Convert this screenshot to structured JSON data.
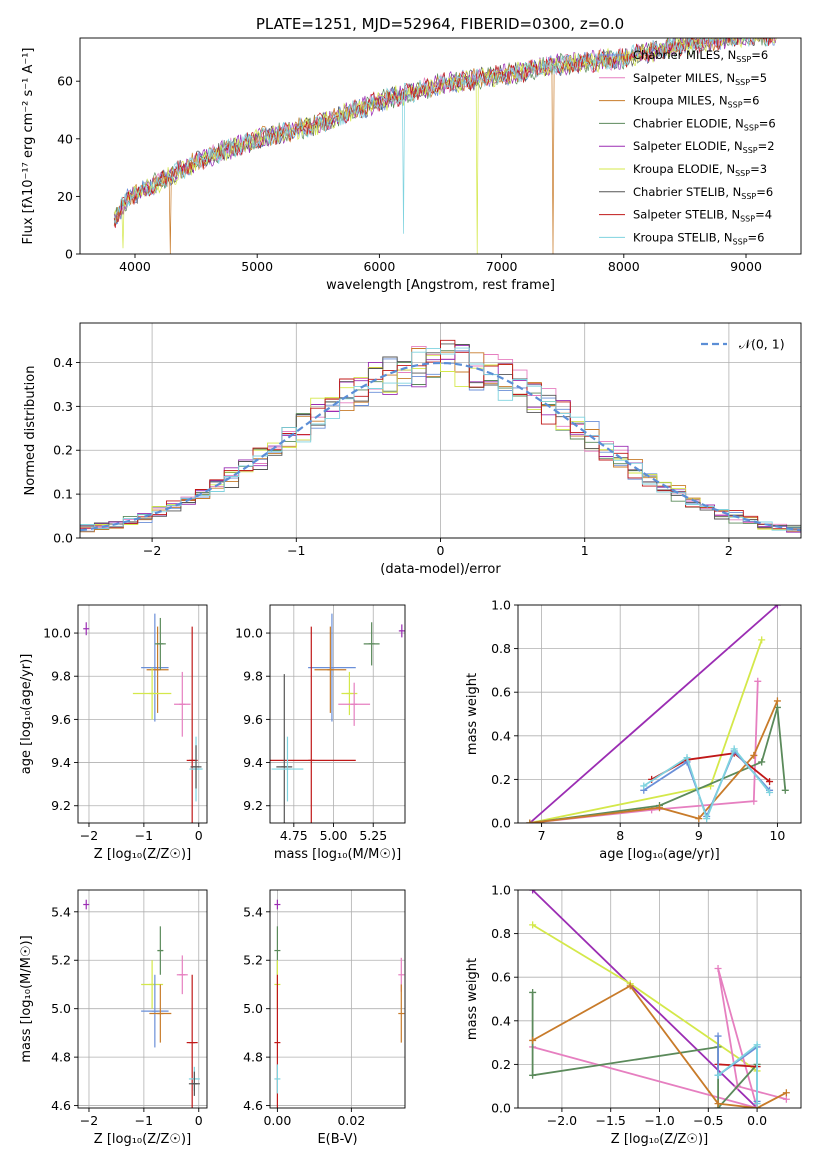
{
  "figure": {
    "title": "PLATE=1251, MJD=52964, FIBERID=0300, z=0.0"
  },
  "models": [
    {
      "name": "Chabrier MILES",
      "nssp": "6",
      "color": "#6a8fd8"
    },
    {
      "name": "Salpeter MILES",
      "nssp": "5",
      "color": "#e67fc0"
    },
    {
      "name": "Kroupa MILES",
      "nssp": "6",
      "color": "#c87b2a"
    },
    {
      "name": "Chabrier ELODIE",
      "nssp": "6",
      "color": "#5b8a5b"
    },
    {
      "name": "Salpeter ELODIE",
      "nssp": "2",
      "color": "#9b2db3"
    },
    {
      "name": "Kroupa ELODIE",
      "nssp": "3",
      "color": "#d4e84a"
    },
    {
      "name": "Chabrier STELIB",
      "nssp": "6",
      "color": "#555555"
    },
    {
      "name": "Salpeter STELIB",
      "nssp": "4",
      "color": "#c01818"
    },
    {
      "name": "Kroupa STELIB",
      "nssp": "6",
      "color": "#7fd3df"
    }
  ],
  "chart_data": [
    {
      "id": "spectrum",
      "type": "line",
      "xlabel": "wavelength [Angstrom, rest frame]",
      "ylabel": "Flux [fλ10⁻¹⁷ erg cm⁻² s⁻¹ A⁻¹]",
      "xlim": [
        3550,
        9450
      ],
      "ylim": [
        0,
        75
      ],
      "xticks": [
        4000,
        5000,
        6000,
        7000,
        8000,
        9000
      ],
      "yticks": [
        0,
        20,
        40,
        60
      ],
      "grid": false,
      "legend": "top-right",
      "continuum": {
        "x": [
          3830,
          3950,
          4200,
          4500,
          5000,
          5500,
          6000,
          6500,
          7000,
          7500,
          8000,
          8200,
          8500,
          9000,
          9250
        ],
        "y": [
          12,
          20,
          25,
          32,
          40,
          45,
          53,
          59,
          62,
          66,
          68,
          70,
          73,
          76,
          76
        ]
      },
      "dips": [
        {
          "x": 3900,
          "model": 5,
          "bottom": 2
        },
        {
          "x": 4290,
          "model": 2,
          "bottom": 0
        },
        {
          "x": 6200,
          "model": 8,
          "bottom": 7
        },
        {
          "x": 6800,
          "model": 5,
          "bottom": 0
        },
        {
          "x": 7420,
          "model": 2,
          "bottom": 0
        }
      ]
    },
    {
      "id": "residuals",
      "type": "line",
      "xlabel": "(data-model)/error",
      "ylabel": "Normed distribution",
      "xlim": [
        -2.5,
        2.5
      ],
      "ylim": [
        0,
        0.49
      ],
      "xticks": [
        -2,
        -1,
        0,
        1,
        2
      ],
      "yticks": [
        0.0,
        0.1,
        0.2,
        0.3,
        0.4
      ],
      "grid": true,
      "legend": "top-right",
      "reference_label": "𝒩(0, 1)",
      "reference_color": "#5b8ed6",
      "bins": {
        "start": -2.5,
        "width": 0.1,
        "count": 50
      }
    },
    {
      "id": "age-vs-Z",
      "type": "scatter",
      "xlabel": "Z [log₁₀(Z/Z☉)]",
      "ylabel": "age  [log₁₀(age/yr)]",
      "xlim": [
        -2.2,
        0.15
      ],
      "ylim": [
        9.12,
        10.13
      ],
      "xticks": [
        -2,
        -1,
        0
      ],
      "yticks": [
        9.2,
        9.4,
        9.6,
        9.8,
        10.0
      ],
      "grid": true,
      "points": [
        {
          "m": 4,
          "x": -2.05,
          "y": 10.02,
          "xe": 0.0,
          "ye": 0.03
        },
        {
          "m": 0,
          "x": -0.8,
          "y": 9.84,
          "xe": 0.25,
          "ye": 0.25
        },
        {
          "m": 2,
          "x": -0.75,
          "y": 9.83,
          "xe": 0.2,
          "ye": 0.2
        },
        {
          "m": 3,
          "x": -0.7,
          "y": 9.95,
          "xe": 0.1,
          "ye": 0.12
        },
        {
          "m": 5,
          "x": -0.85,
          "y": 9.72,
          "xe": 0.35,
          "ye": 0.12
        },
        {
          "m": 1,
          "x": -0.3,
          "y": 9.67,
          "xe": 0.15,
          "ye": 0.15
        },
        {
          "m": 7,
          "x": -0.12,
          "y": 9.41,
          "xe": 0.1,
          "ye": 0.62
        },
        {
          "m": 8,
          "x": -0.05,
          "y": 9.37,
          "xe": 0.12,
          "ye": 0.15
        },
        {
          "m": 6,
          "x": -0.05,
          "y": 9.38,
          "xe": 0.1,
          "ye": 0.1
        }
      ]
    },
    {
      "id": "age-vs-mass",
      "type": "scatter",
      "xlabel": "mass [log₁₀(M/M☉)]",
      "ylabel": "",
      "xlim": [
        4.6,
        5.45
      ],
      "ylim": [
        9.12,
        10.13
      ],
      "xticks": [
        4.75,
        5.0,
        5.25
      ],
      "yticks": [
        9.2,
        9.4,
        9.6,
        9.8,
        10.0
      ],
      "grid": true,
      "points": [
        {
          "m": 4,
          "x": 5.43,
          "y": 10.01,
          "xe": 0.01,
          "ye": 0.03
        },
        {
          "m": 3,
          "x": 5.24,
          "y": 9.95,
          "xe": 0.05,
          "ye": 0.1
        },
        {
          "m": 0,
          "x": 4.99,
          "y": 9.84,
          "xe": 0.15,
          "ye": 0.25
        },
        {
          "m": 2,
          "x": 4.98,
          "y": 9.83,
          "xe": 0.1,
          "ye": 0.2
        },
        {
          "m": 5,
          "x": 5.1,
          "y": 9.72,
          "xe": 0.05,
          "ye": 0.1
        },
        {
          "m": 1,
          "x": 5.13,
          "y": 9.67,
          "xe": 0.1,
          "ye": 0.1
        },
        {
          "m": 7,
          "x": 4.86,
          "y": 9.41,
          "xe": 0.28,
          "ye": 0.62
        },
        {
          "m": 6,
          "x": 4.69,
          "y": 9.38,
          "xe": 0.05,
          "ye": 0.43
        },
        {
          "m": 8,
          "x": 4.71,
          "y": 9.37,
          "xe": 0.1,
          "ye": 0.15
        }
      ]
    },
    {
      "id": "weight-vs-age",
      "type": "line",
      "xlabel": "age  [log₁₀(age/yr)]",
      "ylabel": "mass weight",
      "xlim": [
        6.7,
        10.3
      ],
      "ylim": [
        0,
        1.0
      ],
      "xticks": [
        7,
        8,
        9,
        10
      ],
      "yticks": [
        0.0,
        0.2,
        0.4,
        0.6,
        0.8,
        1.0
      ],
      "grid": true,
      "series": [
        {
          "m": 4,
          "x": [
            6.85,
            10.0
          ],
          "y": [
            0.0,
            1.0
          ]
        },
        {
          "m": 5,
          "x": [
            6.85,
            9.15,
            9.8
          ],
          "y": [
            0.0,
            0.17,
            0.84
          ]
        },
        {
          "m": 1,
          "x": [
            6.85,
            8.4,
            9.7,
            9.75
          ],
          "y": [
            0.0,
            0.06,
            0.1,
            0.65
          ]
        },
        {
          "m": 3,
          "x": [
            6.85,
            8.5,
            9.8,
            10.0,
            10.1
          ],
          "y": [
            0.0,
            0.08,
            0.28,
            0.53,
            0.15
          ]
        },
        {
          "m": 7,
          "x": [
            8.4,
            8.85,
            9.45,
            9.9
          ],
          "y": [
            0.2,
            0.29,
            0.32,
            0.19
          ]
        },
        {
          "m": 2,
          "x": [
            6.85,
            8.5,
            9.0,
            9.7,
            10.0
          ],
          "y": [
            0.0,
            0.07,
            0.02,
            0.31,
            0.56
          ]
        },
        {
          "m": 0,
          "x": [
            8.3,
            8.85,
            9.1,
            9.45,
            9.9
          ],
          "y": [
            0.15,
            0.28,
            0.03,
            0.33,
            0.15
          ]
        },
        {
          "m": 8,
          "x": [
            8.3,
            8.85,
            9.1,
            9.45,
            9.9
          ],
          "y": [
            0.17,
            0.3,
            0.02,
            0.34,
            0.14
          ]
        }
      ]
    },
    {
      "id": "mass-vs-Z",
      "type": "scatter",
      "xlabel": "Z [log₁₀(Z/Z☉)]",
      "ylabel": "mass [log₁₀(M/M☉)]",
      "xlim": [
        -2.2,
        0.15
      ],
      "ylim": [
        4.59,
        5.49
      ],
      "xticks": [
        -2,
        -1,
        0
      ],
      "yticks": [
        4.6,
        4.8,
        5.0,
        5.2,
        5.4
      ],
      "grid": true,
      "points": [
        {
          "m": 4,
          "x": -2.05,
          "y": 5.43,
          "xe": 0.0,
          "ye": 0.02
        },
        {
          "m": 3,
          "x": -0.7,
          "y": 5.24,
          "xe": 0.05,
          "ye": 0.1
        },
        {
          "m": 1,
          "x": -0.3,
          "y": 5.14,
          "xe": 0.1,
          "ye": 0.08
        },
        {
          "m": 5,
          "x": -0.85,
          "y": 5.1,
          "xe": 0.2,
          "ye": 0.1
        },
        {
          "m": 0,
          "x": -0.8,
          "y": 4.99,
          "xe": 0.25,
          "ye": 0.15
        },
        {
          "m": 2,
          "x": -0.7,
          "y": 4.98,
          "xe": 0.2,
          "ye": 0.12
        },
        {
          "m": 7,
          "x": -0.12,
          "y": 4.86,
          "xe": 0.1,
          "ye": 0.28
        },
        {
          "m": 8,
          "x": -0.08,
          "y": 4.71,
          "xe": 0.1,
          "ye": 0.05
        },
        {
          "m": 6,
          "x": -0.08,
          "y": 4.69,
          "xe": 0.1,
          "ye": 0.05
        }
      ]
    },
    {
      "id": "mass-vs-EBV",
      "type": "scatter",
      "xlabel": "E(B-V)",
      "ylabel": "",
      "xlim": [
        -0.002,
        0.0345
      ],
      "ylim": [
        4.59,
        5.49
      ],
      "xticks": [
        0.0,
        0.02
      ],
      "yticks": [
        4.6,
        4.8,
        5.0,
        5.2,
        5.4
      ],
      "grid": true,
      "points": [
        {
          "m": 4,
          "x": 0.0,
          "y": 5.43,
          "xe": 0.0,
          "ye": 0.02
        },
        {
          "m": 3,
          "x": 0.0,
          "y": 5.24,
          "xe": 0.0,
          "ye": 0.1
        },
        {
          "m": 5,
          "x": 0.0,
          "y": 5.1,
          "xe": 0.0,
          "ye": 0.1
        },
        {
          "m": 7,
          "x": 0.0,
          "y": 4.86,
          "xe": 0.0,
          "ye": 0.28
        },
        {
          "m": 8,
          "x": 0.0,
          "y": 4.71,
          "xe": 0.0,
          "ye": 0.06
        },
        {
          "m": 1,
          "x": 0.0335,
          "y": 5.14,
          "xe": 0.0,
          "ye": 0.07
        },
        {
          "m": 2,
          "x": 0.0335,
          "y": 4.98,
          "xe": 0.0,
          "ye": 0.12
        }
      ]
    },
    {
      "id": "weight-vs-Z",
      "type": "line",
      "xlabel": "Z [log₁₀(Z/Z☉)]",
      "ylabel": "mass weight",
      "xlim": [
        -2.45,
        0.45
      ],
      "ylim": [
        0,
        1.0
      ],
      "xticks": [
        -2.0,
        -1.5,
        -1.0,
        -0.5,
        0.0
      ],
      "yticks": [
        0.0,
        0.2,
        0.4,
        0.6,
        0.8,
        1.0
      ],
      "grid": true,
      "series": [
        {
          "m": 4,
          "x": [
            -2.3,
            0.0
          ],
          "y": [
            1.0,
            0.0
          ]
        },
        {
          "m": 5,
          "x": [
            -2.3,
            -1.3,
            0.0
          ],
          "y": [
            0.84,
            0.57,
            0.17
          ]
        },
        {
          "m": 1,
          "x": [
            -2.3,
            0.0,
            -0.4,
            -0.2,
            0.3
          ],
          "y": [
            0.28,
            0.0,
            0.64,
            0.1,
            0.04
          ]
        },
        {
          "m": 3,
          "x": [
            -2.3,
            -2.3,
            -0.4,
            -0.4,
            0.0
          ],
          "y": [
            0.53,
            0.15,
            0.28,
            0.0,
            0.2
          ]
        },
        {
          "m": 7,
          "x": [
            -0.4,
            0.0
          ],
          "y": [
            0.2,
            0.19
          ]
        },
        {
          "m": 2,
          "x": [
            -2.3,
            -1.3,
            -0.4,
            0.0,
            0.3
          ],
          "y": [
            0.31,
            0.56,
            0.02,
            0.0,
            0.07
          ]
        },
        {
          "m": 0,
          "x": [
            -0.4,
            -0.4,
            0.0,
            0.0
          ],
          "y": [
            0.33,
            0.15,
            0.28,
            0.03
          ]
        },
        {
          "m": 8,
          "x": [
            -0.4,
            0.0,
            0.0
          ],
          "y": [
            0.15,
            0.29,
            0.02
          ]
        }
      ]
    }
  ]
}
